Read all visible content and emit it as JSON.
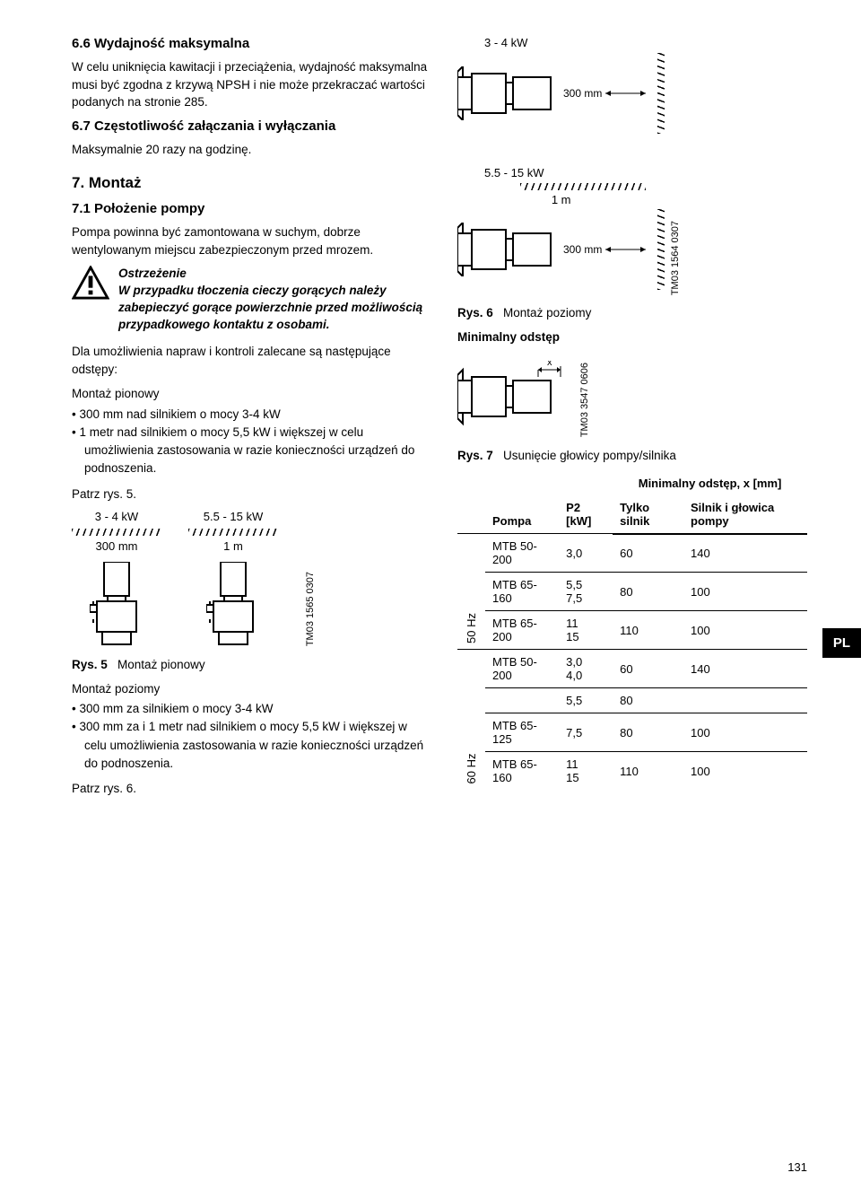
{
  "sec66": {
    "title": "6.6 Wydajność maksymalna",
    "body": "W celu uniknięcia kawitacji i przeciążenia, wydajność maksymalna musi być zgodna z krzywą NPSH i nie może przekraczać wartości podanych na stronie 285."
  },
  "sec67": {
    "title": "6.7 Częstotliwość załączania i wyłączania",
    "body": "Maksymalnie 20 razy na godzinę."
  },
  "sec7": {
    "title": "7. Montaż"
  },
  "sec71": {
    "title": "7.1 Położenie pompy",
    "body": "Pompa powinna być zamontowana w suchym, dobrze wentylowanym miejscu zabezpieczonym przed mrozem."
  },
  "warn": {
    "head": "Ostrzeżenie",
    "text": "W przypadku tłoczenia cieczy gorących należy zabepieczyć gorące powierzchnie przed możliwością przypadkowego kontaktu z osobami."
  },
  "repair_intro": "Dla umożliwienia napraw i kontroli zalecane są następujące odstępy:",
  "montaz_pionowy": "Montaż pionowy",
  "bullets_pionowy": [
    "300 mm nad silnikiem o mocy 3-4 kW",
    "1 metr nad silnikiem o mocy 5,5 kW i większej w celu umożliwienia zastosowania w razie konieczności urządzeń do podnoszenia."
  ],
  "patrz5": "Patrz rys. 5.",
  "kw_small": "3 - 4 kW",
  "kw_large": "5.5 - 15 kW",
  "dim_300": "300 mm",
  "dim_1m": "1 m",
  "fig5": "Montaż pionowy",
  "fig5_label": "Rys. 5",
  "fig6": "Montaż poziomy",
  "fig6_label": "Rys. 6",
  "fig7": "Usunięcie głowicy pompy/silnika",
  "fig7_label": "Rys. 7",
  "min_odstep": "Minimalny odstęp",
  "montaz_poziomy": "Montaż poziomy",
  "bullets_poziomy": [
    "300 mm za silnikiem o mocy 3-4 kW",
    "300 mm za i 1 metr nad silnikiem o mocy 5,5 kW i większej w celu umożliwienia zastosowania w razie konieczności urządzeń do podnoszenia."
  ],
  "patrz6": "Patrz rys. 6.",
  "tm1": "TM03 1565 0307",
  "tm2": "TM03 1564 0307",
  "tm3": "TM03 3547 0606",
  "table": {
    "head_pompa": "Pompa",
    "head_p2": "P2 [kW]",
    "head_min": "Minimalny odstęp, x [mm]",
    "head_tylko": "Tylko silnik",
    "head_glowica": "Silnik i głowica pompy",
    "hz50": "50 Hz",
    "hz60": "60 Hz",
    "rows50": [
      {
        "pump": "MTB 50-200",
        "p2": "3,0",
        "t": "60",
        "g": "140"
      },
      {
        "pump": "MTB 65-160",
        "p2": "5,5\n7,5",
        "t": "80",
        "g": "100"
      },
      {
        "pump": "MTB 65-200",
        "p2": "11\n15",
        "t": "110",
        "g": "100"
      }
    ],
    "rows60": [
      {
        "pump": "MTB 50-200",
        "p2": "3,0\n4,0",
        "t": "60",
        "g": "140"
      },
      {
        "pump": "",
        "p2": "5,5",
        "t": "80",
        "g": ""
      },
      {
        "pump": "MTB 65-125",
        "p2": "7,5",
        "t": "80",
        "g": "100"
      },
      {
        "pump": "MTB 65-160",
        "p2": "11\n15",
        "t": "110",
        "g": "100"
      }
    ]
  },
  "lang": "PL",
  "pagenum": "131"
}
